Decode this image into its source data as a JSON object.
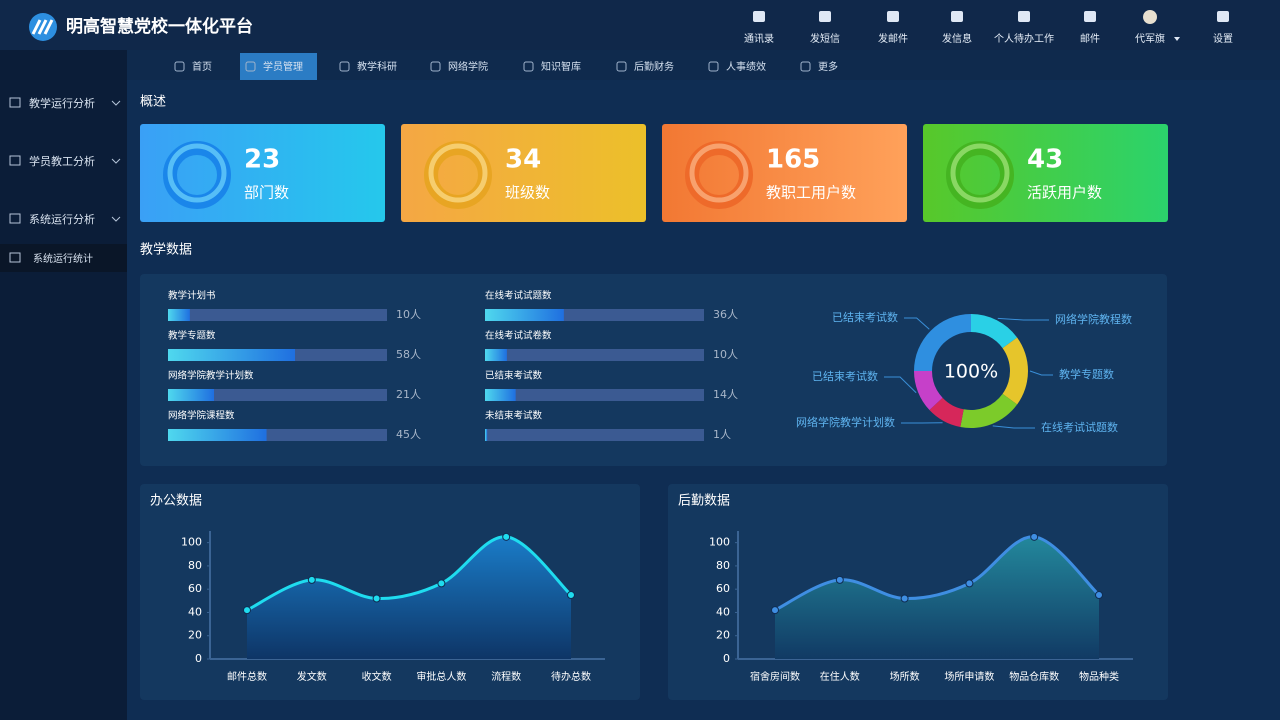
{
  "header": {
    "title": "明高智慧党校一体化平台",
    "tools": [
      "通讯录",
      "发短信",
      "发邮件",
      "发信息",
      "个人待办工作",
      "邮件",
      "代军旗",
      "设置"
    ]
  },
  "nav": {
    "items": [
      "首页",
      "学员管理",
      "教学科研",
      "网络学院",
      "知识智库",
      "后勤财务",
      "人事绩效",
      "更多"
    ],
    "active": 1
  },
  "sidebar": {
    "items": [
      "教学运行分析",
      "学员教工分析",
      "系统运行分析",
      "系统运行统计"
    ],
    "active": 3
  },
  "overview": {
    "title": "概述",
    "stats": [
      {
        "value": 23,
        "label": "部门数"
      },
      {
        "value": 34,
        "label": "班级数"
      },
      {
        "value": 165,
        "label": "教职工用户数"
      },
      {
        "value": 43,
        "label": "活跃用户数"
      }
    ]
  },
  "teaching": {
    "title": "教学数据"
  },
  "chart_data": [
    {
      "type": "bar",
      "orientation": "horizontal",
      "categories": [
        "教学计划书",
        "教学专题数",
        "网络学院教学计划数",
        "网络学院课程数",
        "在线考试试题数",
        "在线考试试卷数",
        "已结束考试数",
        "未结束考试数"
      ],
      "values": [
        10,
        58,
        21,
        45,
        36,
        10,
        14,
        1
      ],
      "value_labels": [
        "10人",
        "58人",
        "21人",
        "45人",
        "36人",
        "10人",
        "14人",
        "1人"
      ],
      "xlim": [
        0,
        100
      ],
      "color": "#1f6fe0"
    },
    {
      "type": "pie",
      "center_label": "100%",
      "categories": [
        "网络学院教程数",
        "教学专题数",
        "在线考试试题数",
        "网络学院教学计划数",
        "已结束考试数",
        "已结束考试数"
      ],
      "values": [
        15,
        20,
        18,
        10,
        12,
        25
      ],
      "colors": [
        "#2ad0e6",
        "#e6c52b",
        "#7ccb2a",
        "#d6275a",
        "#c640c9",
        "#2f8fe0"
      ]
    },
    {
      "type": "area",
      "title": "办公数据",
      "categories": [
        "邮件总数",
        "发文数",
        "收文数",
        "审批总人数",
        "流程数",
        "待办总数"
      ],
      "values": [
        42,
        68,
        52,
        65,
        105,
        55
      ],
      "ylim": [
        0,
        110
      ],
      "yticks": [
        0,
        20,
        40,
        60,
        80,
        100
      ],
      "color": "#1fdcef"
    },
    {
      "type": "area",
      "title": "后勤数据",
      "categories": [
        "宿舍房间数",
        "在住人数",
        "场所数",
        "场所申请数",
        "物品仓库数",
        "物品种类"
      ],
      "values": [
        42,
        68,
        52,
        65,
        105,
        55
      ],
      "ylim": [
        0,
        110
      ],
      "yticks": [
        0,
        20,
        40,
        60,
        80,
        100
      ],
      "color": "#3f8ee2"
    }
  ]
}
